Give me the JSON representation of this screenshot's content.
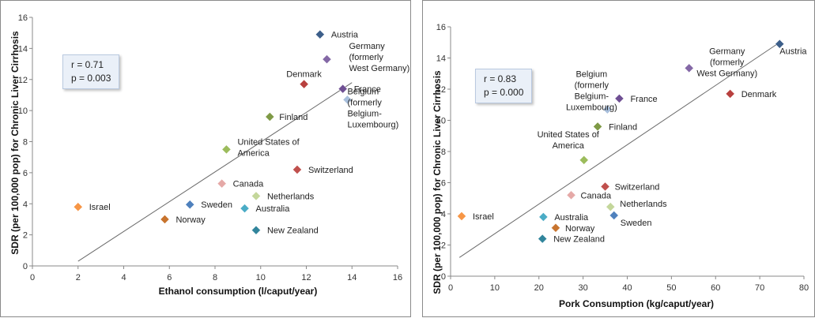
{
  "chart_data": [
    {
      "type": "scatter",
      "id": "left",
      "xlabel": "Ethanol consumption (l/caput/year)",
      "ylabel": "SDR (per 100,000 pop) for Chronic Liver Cirrhosis",
      "xlim": [
        0,
        16
      ],
      "ylim": [
        0,
        16
      ],
      "xticks": [
        "0",
        "2",
        "4",
        "6",
        "8",
        "10",
        "12",
        "14",
        "16"
      ],
      "yticks": [
        "0",
        "2",
        "4",
        "6",
        "8",
        "10",
        "12",
        "14",
        "16"
      ],
      "stats": {
        "r": "r = 0.71",
        "p": "p = 0.003"
      },
      "trendline": {
        "x1": 2.0,
        "y1": 0.3,
        "x2": 14.0,
        "y2": 11.8
      },
      "points": [
        {
          "label": [
            "Austria"
          ],
          "x": 12.6,
          "y": 14.9,
          "color": "#3d5f8a"
        },
        {
          "label": [
            "Germany",
            "(formerly",
            "West Germany)"
          ],
          "x": 12.9,
          "y": 13.3,
          "color": "#8468a6"
        },
        {
          "label": [
            "Denmark"
          ],
          "x": 11.9,
          "y": 11.7,
          "color": "#b8403e"
        },
        {
          "label": [
            "France"
          ],
          "x": 13.6,
          "y": 11.4,
          "color": "#6f4f93"
        },
        {
          "label": [
            "Belgium",
            "(formerly",
            "Belgium-",
            "Luxembourg)"
          ],
          "x": 13.8,
          "y": 10.7,
          "color": "#a8bfdc"
        },
        {
          "label": [
            "Finland"
          ],
          "x": 10.4,
          "y": 9.6,
          "color": "#7f9a46"
        },
        {
          "label": [
            "United States of",
            "America"
          ],
          "x": 8.5,
          "y": 7.5,
          "color": "#9cbc5c"
        },
        {
          "label": [
            "Switzerland"
          ],
          "x": 11.6,
          "y": 6.2,
          "color": "#c0504d"
        },
        {
          "label": [
            "Canada"
          ],
          "x": 8.3,
          "y": 5.3,
          "color": "#e5a9a7"
        },
        {
          "label": [
            "Netherlands"
          ],
          "x": 9.8,
          "y": 4.5,
          "color": "#c4d79b"
        },
        {
          "label": [
            "Israel"
          ],
          "x": 2.0,
          "y": 3.8,
          "color": "#f79646"
        },
        {
          "label": [
            "Sweden"
          ],
          "x": 6.9,
          "y": 3.95,
          "color": "#4f81bd"
        },
        {
          "label": [
            "Australia"
          ],
          "x": 9.3,
          "y": 3.7,
          "color": "#4bacc6"
        },
        {
          "label": [
            "Norway"
          ],
          "x": 5.8,
          "y": 3.0,
          "color": "#c8742e"
        },
        {
          "label": [
            "New Zealand"
          ],
          "x": 9.8,
          "y": 2.3,
          "color": "#31859c"
        }
      ]
    },
    {
      "type": "scatter",
      "id": "right",
      "xlabel": "Pork Consumption (kg/caput/year)",
      "ylabel": "SDR (per 100,000 pop) for Chronic Liver Cirrhosis",
      "xlim": [
        0,
        80
      ],
      "ylim": [
        0,
        16
      ],
      "xticks": [
        "0",
        "10",
        "20",
        "30",
        "40",
        "50",
        "60",
        "70",
        "80"
      ],
      "yticks": [
        "0",
        "2",
        "4",
        "6",
        "8",
        "10",
        "12",
        "14",
        "16"
      ],
      "stats": {
        "r": "r = 0.83",
        "p": "p = 0.000"
      },
      "trendline": {
        "x1": 2.0,
        "y1": 1.2,
        "x2": 74.5,
        "y2": 15.0
      },
      "points": [
        {
          "label": [
            "Austria"
          ],
          "x": 74.5,
          "y": 14.9,
          "color": "#3d5f8a"
        },
        {
          "label": [
            "Germany",
            "(formerly",
            "West Germany)"
          ],
          "x": 54.0,
          "y": 13.35,
          "color": "#8468a6"
        },
        {
          "label": [
            "Denmark"
          ],
          "x": 63.3,
          "y": 11.7,
          "color": "#b8403e"
        },
        {
          "label": [
            "France"
          ],
          "x": 38.2,
          "y": 11.4,
          "color": "#6f4f93"
        },
        {
          "label": [
            "Belgium",
            "(formerly",
            "Belgium-",
            "Luxembourg)"
          ],
          "x": 35.5,
          "y": 10.7,
          "color": "#a8bfdc"
        },
        {
          "label": [
            "Finland"
          ],
          "x": 33.3,
          "y": 9.6,
          "color": "#7f9a46"
        },
        {
          "label": [
            "United States of",
            "America"
          ],
          "x": 30.2,
          "y": 7.45,
          "color": "#9cbc5c"
        },
        {
          "label": [
            "Switzerland"
          ],
          "x": 35.0,
          "y": 5.75,
          "color": "#c0504d"
        },
        {
          "label": [
            "Canada"
          ],
          "x": 27.3,
          "y": 5.2,
          "color": "#e5a9a7"
        },
        {
          "label": [
            "Netherlands"
          ],
          "x": 36.2,
          "y": 4.45,
          "color": "#c4d79b"
        },
        {
          "label": [
            "Israel"
          ],
          "x": 2.5,
          "y": 3.85,
          "color": "#f79646"
        },
        {
          "label": [
            "Sweden"
          ],
          "x": 37.0,
          "y": 3.9,
          "color": "#4f81bd"
        },
        {
          "label": [
            "Australia"
          ],
          "x": 21.0,
          "y": 3.8,
          "color": "#4bacc6"
        },
        {
          "label": [
            "Norway"
          ],
          "x": 23.8,
          "y": 3.1,
          "color": "#c8742e"
        },
        {
          "label": [
            "New Zealand"
          ],
          "x": 20.8,
          "y": 2.4,
          "color": "#31859c"
        }
      ]
    }
  ]
}
